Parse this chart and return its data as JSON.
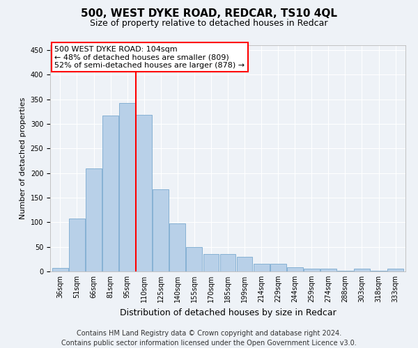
{
  "title": "500, WEST DYKE ROAD, REDCAR, TS10 4QL",
  "subtitle": "Size of property relative to detached houses in Redcar",
  "xlabel": "Distribution of detached houses by size in Redcar",
  "ylabel": "Number of detached properties",
  "categories": [
    "36sqm",
    "51sqm",
    "66sqm",
    "81sqm",
    "95sqm",
    "110sqm",
    "125sqm",
    "140sqm",
    "155sqm",
    "170sqm",
    "185sqm",
    "199sqm",
    "214sqm",
    "229sqm",
    "244sqm",
    "259sqm",
    "274sqm",
    "288sqm",
    "303sqm",
    "318sqm",
    "333sqm"
  ],
  "values": [
    7,
    107,
    210,
    317,
    342,
    318,
    167,
    98,
    50,
    35,
    35,
    30,
    15,
    15,
    9,
    5,
    5,
    1,
    5,
    1,
    5
  ],
  "bar_color": "#b8d0e8",
  "bar_edge_color": "#7aaacf",
  "vline_x": 4.5,
  "annotation_title": "500 WEST DYKE ROAD: 104sqm",
  "annotation_line1": "← 48% of detached houses are smaller (809)",
  "annotation_line2": "52% of semi-detached houses are larger (878) →",
  "footer_line1": "Contains HM Land Registry data © Crown copyright and database right 2024.",
  "footer_line2": "Contains public sector information licensed under the Open Government Licence v3.0.",
  "ylim": [
    0,
    460
  ],
  "yticks": [
    0,
    50,
    100,
    150,
    200,
    250,
    300,
    350,
    400,
    450
  ],
  "background_color": "#eef2f7",
  "grid_color": "#ffffff",
  "title_fontsize": 11,
  "subtitle_fontsize": 9,
  "axis_label_fontsize": 8,
  "tick_fontsize": 7,
  "footer_fontsize": 7,
  "annotation_fontsize": 8
}
